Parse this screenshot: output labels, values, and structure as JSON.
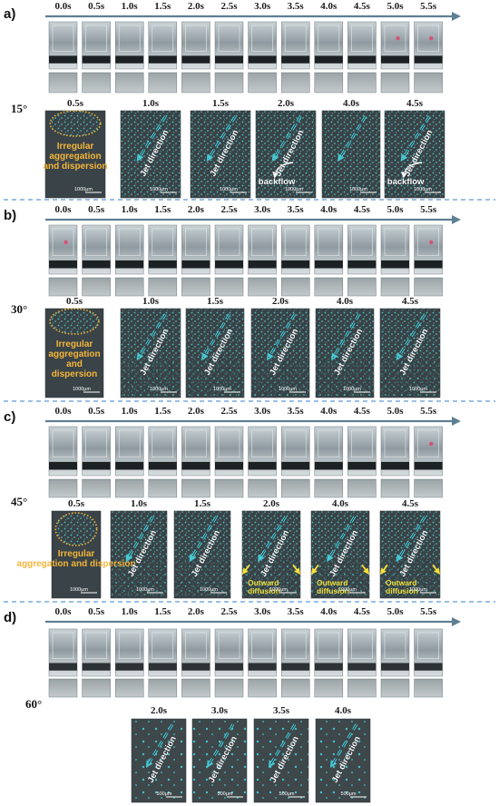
{
  "panels": [
    {
      "label": "a)",
      "angle": "15°",
      "times": [
        "0.0s",
        "0.5s",
        "1.0s",
        "1.5s",
        "2.0s",
        "2.5s",
        "3.0s",
        "3.5s",
        "4.0s",
        "4.5s",
        "5.0s",
        "5.5s"
      ],
      "micro": [
        {
          "time": "0.5s",
          "irregular": [
            "Irregular",
            "aggregation",
            "and dispersion"
          ],
          "jet": "",
          "backflow": "",
          "outward": "",
          "scale": "1000μm"
        },
        {
          "time": "1.0s",
          "jet": "Jet direction",
          "scale": "1000μm"
        },
        {
          "time": "1.5s",
          "jet": "Jet direction",
          "scale": "1000μm"
        },
        {
          "time": "2.0s",
          "jet": "Jet direction",
          "backflow": "backflow",
          "scale": "1000μm"
        },
        {
          "time": "4.0s",
          "jet": "",
          "scale": "1000μm"
        },
        {
          "time": "4.5s",
          "jet": "Jet direction",
          "backflow": "backflow",
          "scale": "1000μm"
        }
      ]
    },
    {
      "label": "b)",
      "angle": "30°",
      "times": [
        "0.0s",
        "0.5s",
        "1.0s",
        "1.5s",
        "2.0s",
        "2.5s",
        "3.0s",
        "3.5s",
        "4.0s",
        "4.5s",
        "5.0s",
        "5.5s"
      ],
      "micro": [
        {
          "time": "0.5s",
          "irregular": [
            "Irregular",
            "aggregation",
            "and",
            "dispersion"
          ],
          "scale": "1000μm"
        },
        {
          "time": "1.0s",
          "jet": "Jet direction",
          "scale": "1000μm"
        },
        {
          "time": "1.5s",
          "jet": "Jet direction",
          "scale": "1000μm"
        },
        {
          "time": "2.0s",
          "jet": "Jet direction",
          "scale": "1000μm"
        },
        {
          "time": "4.0s",
          "jet": "Jet direction",
          "scale": "1000μm"
        },
        {
          "time": "4.5s",
          "jet": "Jet direction",
          "scale": "1000μm"
        }
      ]
    },
    {
      "label": "c)",
      "angle": "45°",
      "times": [
        "0.0s",
        "0.5s",
        "1.0s",
        "1.5s",
        "2.0s",
        "2.5s",
        "3.0s",
        "3.5s",
        "4.0s",
        "4.5s",
        "5.0s",
        "5.5s"
      ],
      "micro": [
        {
          "time": "0.5s",
          "irregular": [
            "Irregular",
            "aggregation and dispersion"
          ],
          "scale": "1000μm"
        },
        {
          "time": "1.0s",
          "jet": "Jet direction",
          "scale": "1000μm"
        },
        {
          "time": "1.5s",
          "jet": "Jet direction",
          "scale": "1000μm"
        },
        {
          "time": "2.0s",
          "jet": "Jet direction",
          "outward": "Outward diffusion",
          "scale": "1000μm"
        },
        {
          "time": "4.0s",
          "jet": "Jet direction",
          "outward": "Outward diffusion",
          "scale": "1000μm"
        },
        {
          "time": "4.5s",
          "jet": "Jet direction",
          "outward": "Outward diffusion",
          "scale": "1000μm"
        }
      ]
    },
    {
      "label": "d)",
      "angle": "60°",
      "times": [
        "0.0s",
        "0.5s",
        "1.0s",
        "1.5s",
        "2.0s",
        "2.5s",
        "3.0s",
        "3.5s",
        "4.0s",
        "4.5s",
        "5.0s",
        "5.5s"
      ],
      "micro": [
        {
          "time": "2.0s",
          "jet": "Jet direction",
          "scale": "500μm"
        },
        {
          "time": "3.0s",
          "jet": "Jet direction",
          "scale": "500μm"
        },
        {
          "time": "3.5s",
          "jet": "Jet direction",
          "scale": "500μm"
        },
        {
          "time": "4.0s",
          "jet": "Jet direction",
          "scale": "500μm"
        }
      ]
    }
  ],
  "colors": {
    "timeline": "#5f7f93",
    "separator": "#5b9bd5",
    "particle": "#43c4c8",
    "micro_bg": "#3a4246",
    "irregular": "#f4b63a",
    "outward": "#f2df3a",
    "backflow_arrow": "#ffffff"
  }
}
